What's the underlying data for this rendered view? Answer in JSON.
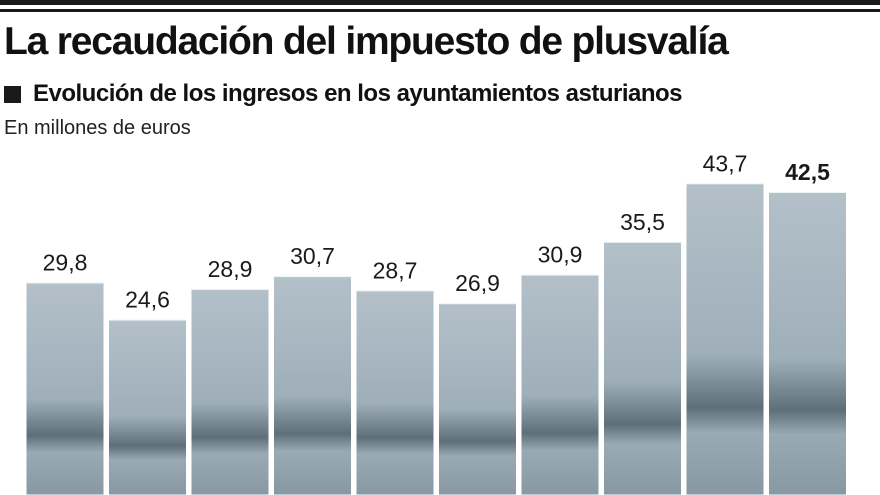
{
  "header": {
    "title": "La recaudación del impuesto de plusvalía",
    "subtitle": "Evolución de los ingresos en los ayuntamientos asturianos",
    "unit_note": "En millones de euros"
  },
  "colors": {
    "bar_fill": "#a7b5bf",
    "bar_dark": "#6f7f8a",
    "text": "#1a1a1a"
  },
  "chart_data": {
    "type": "bar",
    "title": "La recaudación del impuesto de plusvalía",
    "subtitle": "Evolución de los ingresos en los ayuntamientos asturianos",
    "ylabel": "En millones de euros",
    "xlabel": "",
    "ylim": [
      0,
      45
    ],
    "grid": false,
    "values": [
      29.8,
      24.6,
      28.9,
      30.7,
      28.7,
      26.9,
      30.9,
      35.5,
      43.7,
      42.5
    ],
    "labels": [
      "29,8",
      "24,6",
      "28,9",
      "30,7",
      "28,7",
      "26,9",
      "30,9",
      "35,5",
      "43,7",
      "42,5"
    ],
    "highlight_index": 9
  }
}
